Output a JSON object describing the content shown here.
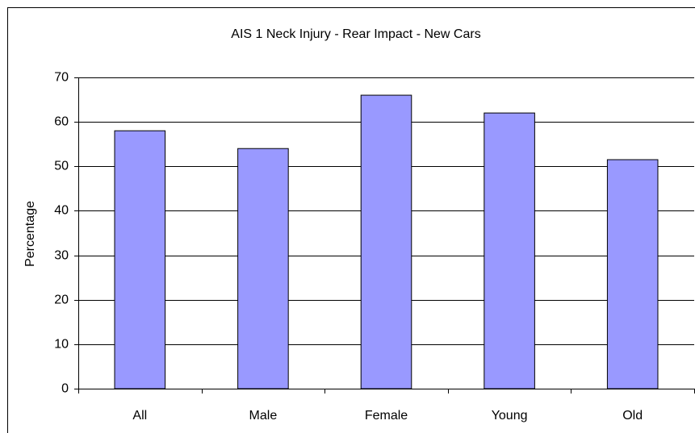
{
  "chart_data": {
    "type": "bar",
    "title": "AIS 1 Neck Injury - Rear Impact - New Cars",
    "y_label": "Percentage",
    "categories": [
      "All",
      "Male",
      "Female",
      "Young",
      "Old"
    ],
    "values": [
      58,
      54,
      66,
      62,
      51.5
    ],
    "color": "#9999ff",
    "ylim": [
      0,
      70
    ],
    "yticks": [
      0,
      10,
      20,
      30,
      40,
      50,
      60,
      70
    ],
    "grid": true
  }
}
